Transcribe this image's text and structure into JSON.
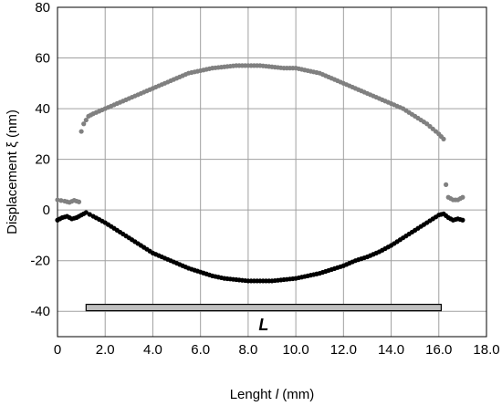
{
  "chart_data": {
    "type": "scatter",
    "xlabel_parts": [
      "Lenght ",
      "l",
      " (mm)"
    ],
    "ylabel": "Displacement ξ (nm)",
    "xlim": [
      0,
      18
    ],
    "ylim": [
      -50,
      80
    ],
    "x_ticks": [
      "0",
      "2.0",
      "4.0",
      "6.0",
      "8.0",
      "10.0",
      "12.0",
      "14.0",
      "16.0",
      "18.0"
    ],
    "y_ticks": [
      "80",
      "60",
      "40",
      "20",
      "0",
      "-20",
      "-40"
    ],
    "grid": true,
    "colors": {
      "upper": "#808080",
      "lower": "#000000",
      "bar_fill": "#c0c0c0"
    },
    "series": [
      {
        "points": [
          [
            0.0,
            4.0
          ],
          [
            0.3,
            3.5
          ],
          [
            0.5,
            3.0
          ],
          [
            0.7,
            3.8
          ],
          [
            0.9,
            3.2
          ],
          [
            1.0,
            31
          ],
          [
            1.1,
            34
          ],
          [
            1.3,
            37
          ],
          [
            1.5,
            38
          ],
          [
            2.0,
            40
          ],
          [
            2.5,
            42
          ],
          [
            3.0,
            44
          ],
          [
            3.5,
            46
          ],
          [
            4.0,
            48
          ],
          [
            4.5,
            50
          ],
          [
            5.0,
            52
          ],
          [
            5.5,
            54
          ],
          [
            6.0,
            55
          ],
          [
            6.5,
            56
          ],
          [
            7.0,
            56.5
          ],
          [
            7.5,
            57
          ],
          [
            8.0,
            57
          ],
          [
            8.5,
            57
          ],
          [
            9.0,
            56.5
          ],
          [
            9.5,
            56
          ],
          [
            10.0,
            56
          ],
          [
            10.5,
            55
          ],
          [
            11.0,
            54
          ],
          [
            11.5,
            52
          ],
          [
            12.0,
            50
          ],
          [
            12.5,
            48
          ],
          [
            13.0,
            46
          ],
          [
            13.5,
            44
          ],
          [
            14.0,
            42
          ],
          [
            14.5,
            40
          ],
          [
            15.0,
            37
          ],
          [
            15.5,
            34
          ],
          [
            16.0,
            30
          ],
          [
            16.2,
            28
          ],
          [
            16.3,
            10
          ],
          [
            16.4,
            5
          ],
          [
            16.6,
            4
          ],
          [
            16.8,
            4
          ],
          [
            17.0,
            5
          ]
        ]
      },
      {
        "points": [
          [
            0.0,
            -4
          ],
          [
            0.2,
            -3
          ],
          [
            0.4,
            -2.5
          ],
          [
            0.6,
            -3.5
          ],
          [
            0.8,
            -3
          ],
          [
            1.0,
            -2
          ],
          [
            1.2,
            -1
          ],
          [
            1.5,
            -2.5
          ],
          [
            2.0,
            -5
          ],
          [
            2.5,
            -8
          ],
          [
            3.0,
            -11
          ],
          [
            3.5,
            -14
          ],
          [
            4.0,
            -17
          ],
          [
            4.5,
            -19
          ],
          [
            5.0,
            -21
          ],
          [
            5.5,
            -23
          ],
          [
            6.0,
            -24.5
          ],
          [
            6.5,
            -26
          ],
          [
            7.0,
            -27
          ],
          [
            7.5,
            -27.5
          ],
          [
            8.0,
            -28
          ],
          [
            8.5,
            -28
          ],
          [
            9.0,
            -28
          ],
          [
            9.5,
            -27.5
          ],
          [
            10.0,
            -27
          ],
          [
            10.5,
            -26
          ],
          [
            11.0,
            -25
          ],
          [
            11.5,
            -23.5
          ],
          [
            12.0,
            -22
          ],
          [
            12.5,
            -20
          ],
          [
            13.0,
            -18.5
          ],
          [
            13.5,
            -16.5
          ],
          [
            14.0,
            -14
          ],
          [
            14.5,
            -11
          ],
          [
            15.0,
            -8
          ],
          [
            15.5,
            -5
          ],
          [
            16.0,
            -2
          ],
          [
            16.2,
            -1.5
          ],
          [
            16.4,
            -3
          ],
          [
            16.6,
            -4
          ],
          [
            16.8,
            -3.5
          ],
          [
            17.0,
            -4
          ]
        ]
      }
    ],
    "bar": {
      "x_start": 1.2,
      "x_end": 16.1,
      "y_center": -38.5,
      "label": "L"
    }
  }
}
